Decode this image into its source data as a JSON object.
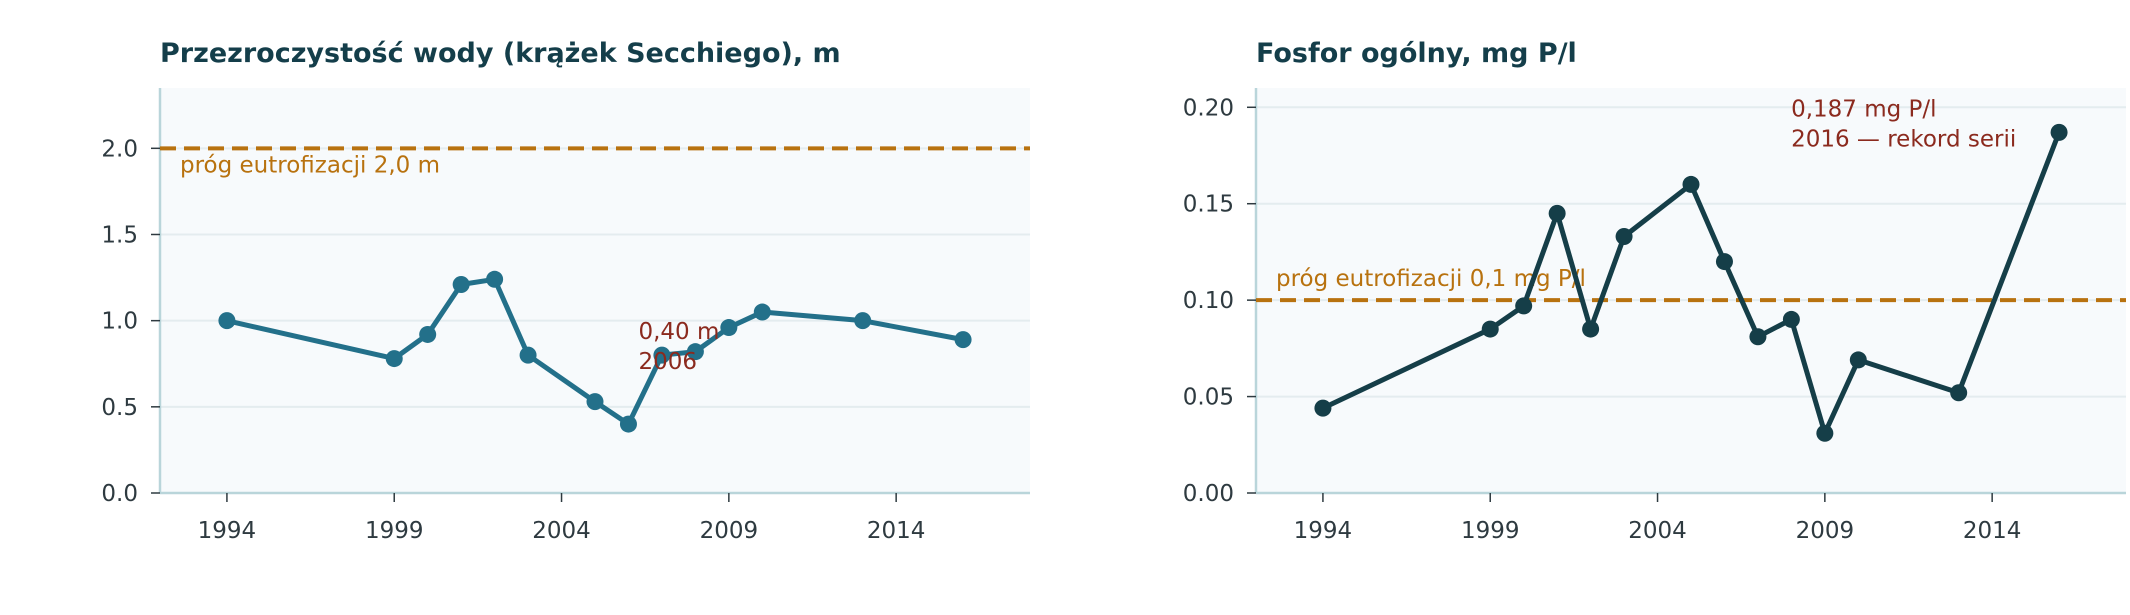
{
  "chart_data": [
    {
      "type": "line",
      "title": "Przezroczystość wody (krążek Secchiego), m",
      "xlabel": "",
      "ylabel": "",
      "xlim": [
        1992,
        2018
      ],
      "ylim": [
        0,
        2.35
      ],
      "xticks": [
        1994,
        1999,
        2004,
        2009,
        2014
      ],
      "yticks": [
        0.0,
        0.5,
        1.0,
        1.5,
        2.0
      ],
      "ytick_labels": [
        "0.0",
        "0.5",
        "1.0",
        "1.5",
        "2.0"
      ],
      "grid": "horizontal",
      "series": [
        {
          "color": "#23708a",
          "x": [
            1994,
            1999,
            2000,
            2001,
            2002,
            2003,
            2005,
            2006,
            2007,
            2008,
            2009,
            2010,
            2013,
            2016
          ],
          "values": [
            1.0,
            0.78,
            0.92,
            1.21,
            1.24,
            0.8,
            0.53,
            0.4,
            0.8,
            0.82,
            0.96,
            1.05,
            1.0,
            0.89
          ]
        }
      ],
      "threshold": {
        "value": 2.0,
        "label": "próg eutrofizacji 2,0 m",
        "color": "#b8720f"
      },
      "annotation": {
        "x": 2006,
        "y": 0.4,
        "lines": [
          "0,40 m",
          "2006"
        ],
        "color": "#8b2a1e"
      }
    },
    {
      "type": "line",
      "title": "Fosfor ogólny, mg P/l",
      "xlabel": "",
      "ylabel": "",
      "xlim": [
        1992,
        2018
      ],
      "ylim": [
        0,
        0.21
      ],
      "xticks": [
        1994,
        1999,
        2004,
        2009,
        2014
      ],
      "yticks": [
        0.0,
        0.05,
        0.1,
        0.15,
        0.2
      ],
      "ytick_labels": [
        "0.00",
        "0.05",
        "0.10",
        "0.15",
        "0.20"
      ],
      "grid": "horizontal",
      "series": [
        {
          "color": "#153e48",
          "x": [
            1994,
            1999,
            2000,
            2001,
            2002,
            2003,
            2005,
            2006,
            2007,
            2008,
            2009,
            2010,
            2013,
            2016
          ],
          "values": [
            0.044,
            0.085,
            0.097,
            0.145,
            0.085,
            0.133,
            0.16,
            0.12,
            0.081,
            0.09,
            0.031,
            0.069,
            0.052,
            0.187
          ]
        }
      ],
      "threshold": {
        "value": 0.1,
        "label": "próg eutrofizacji 0,1 mg P/l",
        "color": "#b8720f"
      },
      "annotation": {
        "x": 2016,
        "y": 0.187,
        "lines": [
          "0,187 mg P/l",
          "2016 — rekord serii"
        ],
        "color": "#8b2a1e"
      }
    }
  ],
  "style": {
    "background": "#ffffff",
    "plot_background": "#f7fafc",
    "grid_color": "#e4ecef",
    "spine_color": "#b9d5da",
    "title_color": "#143e4a",
    "tick_color": "#2e3a40"
  }
}
